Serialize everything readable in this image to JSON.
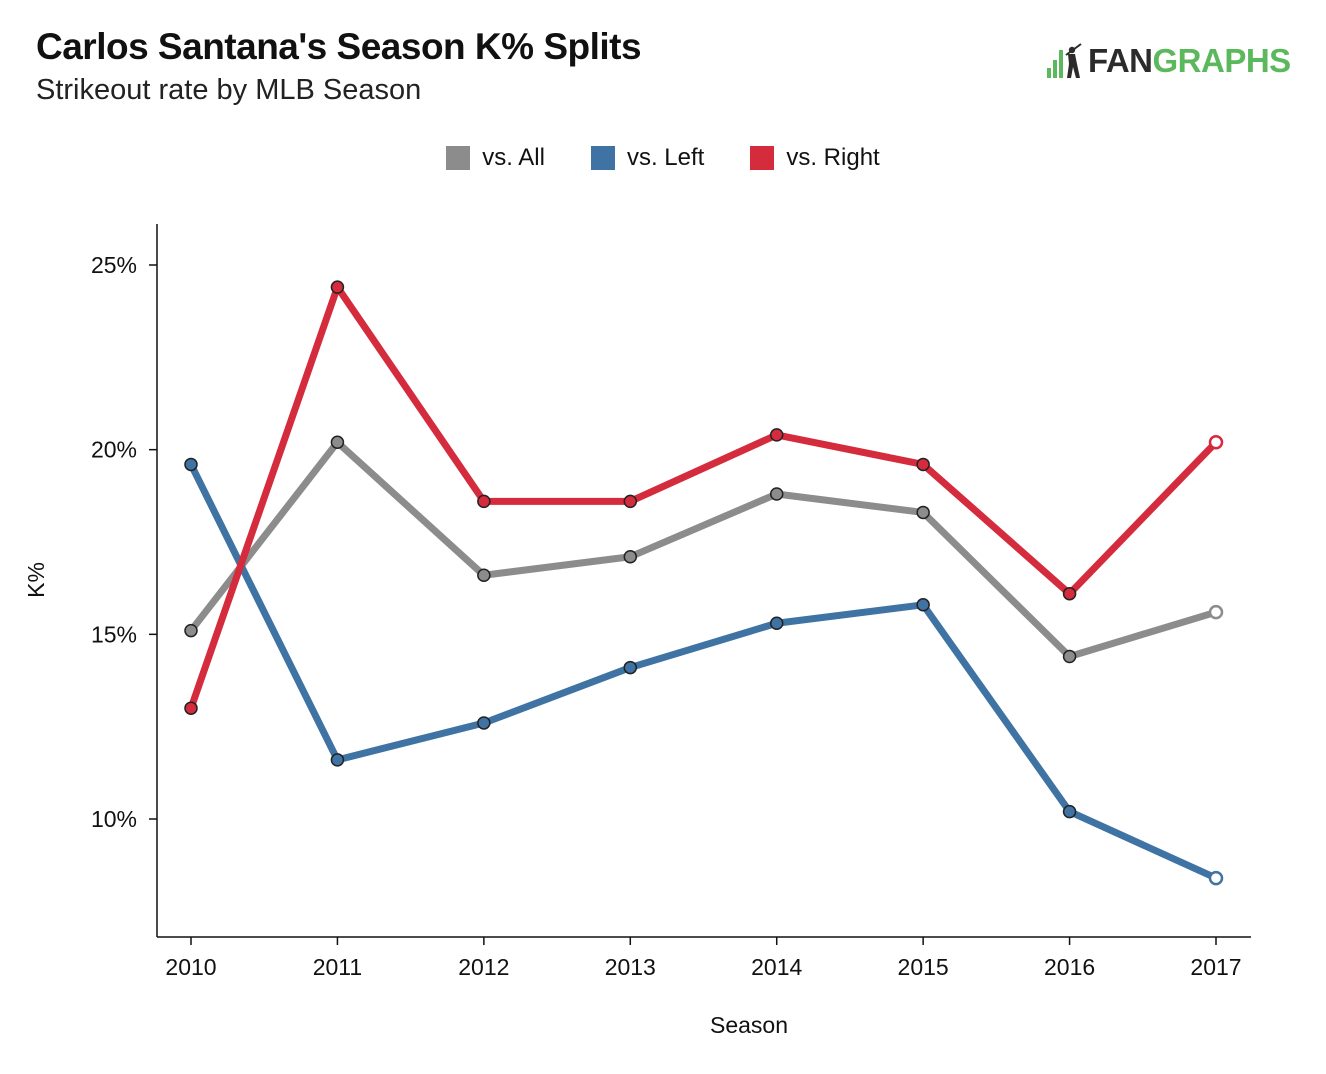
{
  "header": {
    "title": "Carlos Santana's Season K% Splits",
    "subtitle": "Strikeout rate by MLB Season"
  },
  "logo": {
    "part1": "FAN",
    "part2": "GRAPHS",
    "color_dark": "#2b2b2b",
    "color_green": "#5cb85c"
  },
  "chart_data": {
    "type": "line",
    "title": "Carlos Santana's Season K% Splits",
    "subtitle": "Strikeout rate by MLB Season",
    "xlabel": "Season",
    "ylabel": "K%",
    "x": [
      2010,
      2011,
      2012,
      2013,
      2014,
      2015,
      2016,
      2017
    ],
    "x_tick_labels": [
      "2010",
      "2011",
      "2012",
      "2013",
      "2014",
      "2015",
      "2016",
      "2017"
    ],
    "y_ticks": [
      10,
      15,
      20,
      25
    ],
    "y_tick_labels": [
      "10%",
      "15%",
      "20%",
      "25%"
    ],
    "ylim": [
      6.9,
      26.1
    ],
    "grid": false,
    "legend_position": "top-center",
    "series": [
      {
        "name": "vs. All",
        "color": "#8c8c8c",
        "values": [
          15.1,
          20.2,
          16.6,
          17.1,
          18.8,
          18.3,
          14.4,
          15.6
        ]
      },
      {
        "name": "vs. Left",
        "color": "#3f73a3",
        "values": [
          19.6,
          11.6,
          12.6,
          14.1,
          15.3,
          15.8,
          10.2,
          8.4
        ]
      },
      {
        "name": "vs. Right",
        "color": "#d42b3d",
        "values": [
          13.0,
          24.4,
          18.6,
          18.6,
          20.4,
          19.6,
          16.1,
          20.2
        ]
      }
    ],
    "open_marker_last_point": true
  }
}
